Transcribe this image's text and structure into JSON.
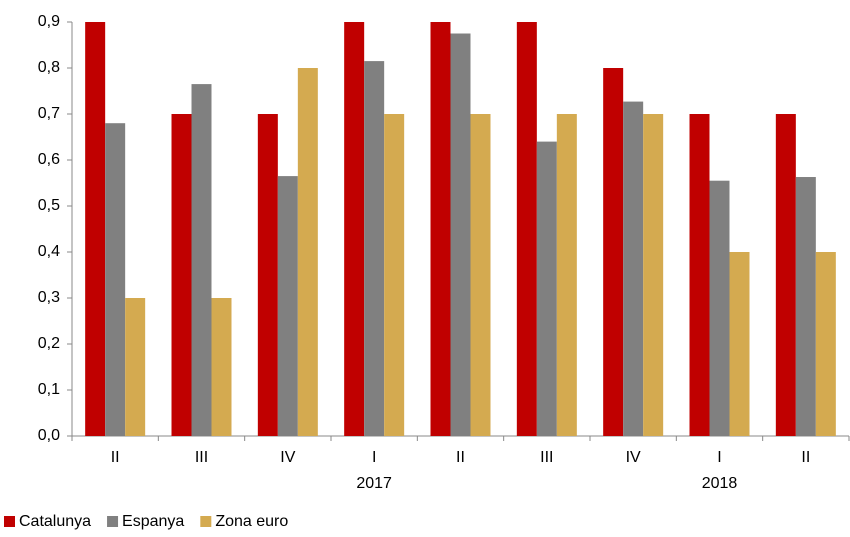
{
  "chart_data": {
    "type": "bar",
    "categories": [
      "II",
      "III",
      "IV",
      "I",
      "II",
      "III",
      "IV",
      "I",
      "II"
    ],
    "category_years": [
      null,
      null,
      null,
      "2017",
      null,
      null,
      null,
      "2018",
      null
    ],
    "series": [
      {
        "name": "Catalunya",
        "color": "#c00000",
        "values": [
          0.9,
          0.7,
          0.7,
          0.9,
          0.9,
          0.9,
          0.8,
          0.7,
          0.7
        ]
      },
      {
        "name": "Espanya",
        "color": "#808080",
        "values": [
          0.68,
          0.765,
          0.565,
          0.815,
          0.875,
          0.64,
          0.727,
          0.555,
          0.563
        ]
      },
      {
        "name": "Zona euro",
        "color": "#d4aa50",
        "values": [
          0.3,
          0.3,
          0.8,
          0.7,
          0.7,
          0.7,
          0.7,
          0.4,
          0.4
        ]
      }
    ],
    "ylim": [
      0,
      0.9
    ],
    "yticks": [
      {
        "value": 0,
        "label": "0,0"
      },
      {
        "value": 0.1,
        "label": "0,1"
      },
      {
        "value": 0.2,
        "label": "0,2"
      },
      {
        "value": 0.3,
        "label": "0,3"
      },
      {
        "value": 0.4,
        "label": "0,4"
      },
      {
        "value": 0.5,
        "label": "0,5"
      },
      {
        "value": 0.6,
        "label": "0,6"
      },
      {
        "value": 0.7,
        "label": "0,7"
      },
      {
        "value": 0.8,
        "label": "0,8"
      },
      {
        "value": 0.9,
        "label": "0,9"
      }
    ],
    "grid": false,
    "legend": "bottom"
  }
}
